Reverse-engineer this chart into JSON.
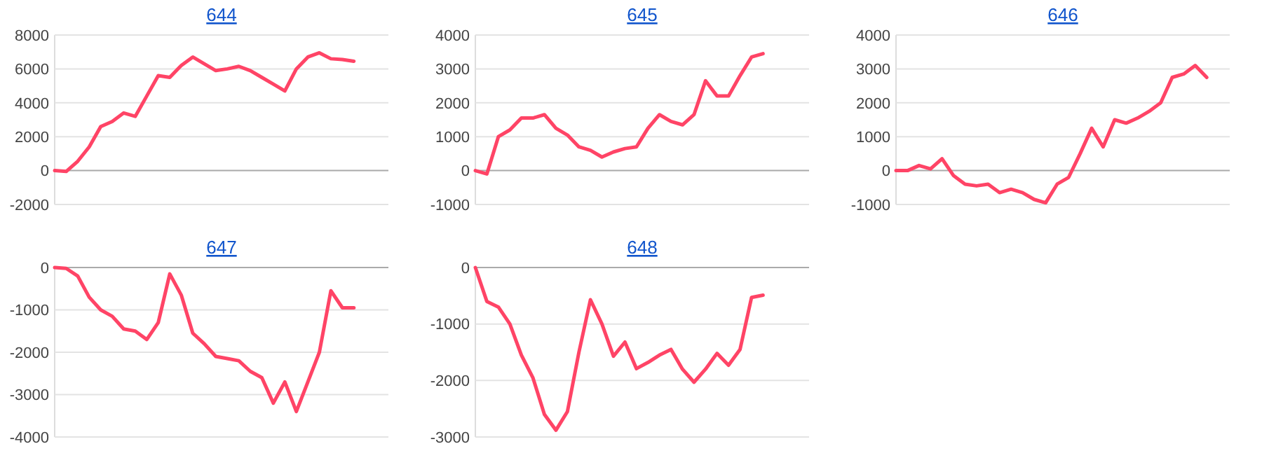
{
  "chart_data": [
    {
      "type": "line",
      "title": "644",
      "categories": [
        null,
        null,
        null,
        null,
        null,
        null,
        null,
        null,
        null,
        null,
        null,
        null,
        null,
        null,
        null,
        null,
        null,
        null,
        null,
        null,
        null,
        null,
        null,
        null,
        null,
        null,
        null,
        null,
        null,
        null
      ],
      "series": [
        {
          "color": "#ff4466",
          "values": [
            0,
            -50,
            550,
            1400,
            2600,
            2900,
            3400,
            3200,
            4400,
            5600,
            5500,
            6200,
            6700,
            6300,
            5900,
            6000,
            6150,
            5900,
            5500,
            5100,
            4700,
            6000,
            6700,
            6950,
            6600,
            6550,
            6450,
            null,
            null,
            null
          ]
        }
      ],
      "ylim": [
        -2000,
        8000
      ],
      "yticks": [
        -2000,
        0,
        2000,
        4000,
        6000,
        8000
      ],
      "grid": "y",
      "tick_labels": "y"
    },
    {
      "type": "line",
      "title": "645",
      "categories": [
        null,
        null,
        null,
        null,
        null,
        null,
        null,
        null,
        null,
        null,
        null,
        null,
        null,
        null,
        null,
        null,
        null,
        null,
        null,
        null,
        null,
        null,
        null,
        null,
        null,
        null,
        null,
        null,
        null,
        null
      ],
      "series": [
        {
          "color": "#ff4466",
          "values": [
            0,
            -100,
            1000,
            1200,
            1550,
            1550,
            1650,
            1250,
            1050,
            700,
            600,
            400,
            550,
            650,
            700,
            1250,
            1650,
            1450,
            1350,
            1650,
            2650,
            2200,
            2200,
            2800,
            3350,
            3450,
            null,
            null,
            null,
            null
          ]
        }
      ],
      "ylim": [
        -1000,
        4000
      ],
      "yticks": [
        -1000,
        0,
        1000,
        2000,
        3000,
        4000
      ],
      "grid": "y",
      "tick_labels": "y"
    },
    {
      "type": "line",
      "title": "646",
      "categories": [
        null,
        null,
        null,
        null,
        null,
        null,
        null,
        null,
        null,
        null,
        null,
        null,
        null,
        null,
        null,
        null,
        null,
        null,
        null,
        null,
        null,
        null,
        null,
        null,
        null,
        null,
        null,
        null,
        null,
        null
      ],
      "series": [
        {
          "color": "#ff4466",
          "values": [
            0,
            0,
            150,
            50,
            350,
            -150,
            -400,
            -450,
            -400,
            -650,
            -550,
            -650,
            -850,
            -950,
            -400,
            -200,
            500,
            1250,
            700,
            1500,
            1400,
            1550,
            1750,
            2000,
            2750,
            2850,
            3100,
            2750,
            null,
            null
          ]
        }
      ],
      "ylim": [
        -1000,
        4000
      ],
      "yticks": [
        -1000,
        0,
        1000,
        2000,
        3000,
        4000
      ],
      "grid": "y",
      "tick_labels": "y"
    },
    {
      "type": "line",
      "title": "647",
      "categories": [
        null,
        null,
        null,
        null,
        null,
        null,
        null,
        null,
        null,
        null,
        null,
        null,
        null,
        null,
        null,
        null,
        null,
        null,
        null,
        null,
        null,
        null,
        null,
        null,
        null,
        null,
        null,
        null,
        null,
        null
      ],
      "series": [
        {
          "color": "#ff4466",
          "values": [
            0,
            -20,
            -200,
            -700,
            -1000,
            -1150,
            -1450,
            -1500,
            -1700,
            -1300,
            -150,
            -650,
            -1550,
            -1800,
            -2100,
            -2150,
            -2200,
            -2450,
            -2600,
            -3200,
            -2700,
            -3400,
            -2700,
            -2000,
            -550,
            -950,
            -950,
            null,
            null,
            null
          ]
        }
      ],
      "ylim": [
        -4000,
        0
      ],
      "yticks": [
        -4000,
        -3000,
        -2000,
        -1000,
        0
      ],
      "grid": "y",
      "tick_labels": "y"
    },
    {
      "type": "line",
      "title": "648",
      "categories": [
        null,
        null,
        null,
        null,
        null,
        null,
        null,
        null,
        null,
        null,
        null,
        null,
        null,
        null,
        null,
        null,
        null,
        null,
        null,
        null,
        null,
        null,
        null,
        null,
        null,
        null,
        null,
        null,
        null,
        null
      ],
      "series": [
        {
          "color": "#ff4466",
          "values": [
            0,
            -600,
            -700,
            -1000,
            -1550,
            -1950,
            -2600,
            -2880,
            -2550,
            -1500,
            -570,
            -1000,
            -1570,
            -1320,
            -1790,
            -1680,
            -1550,
            -1450,
            -1800,
            -2030,
            -1800,
            -1520,
            -1730,
            -1450,
            -530,
            -490,
            null,
            null,
            null,
            null
          ]
        }
      ],
      "ylim": [
        -3000,
        0
      ],
      "yticks": [
        -3000,
        -2000,
        -1000,
        0
      ],
      "grid": "y",
      "tick_labels": "y"
    }
  ]
}
